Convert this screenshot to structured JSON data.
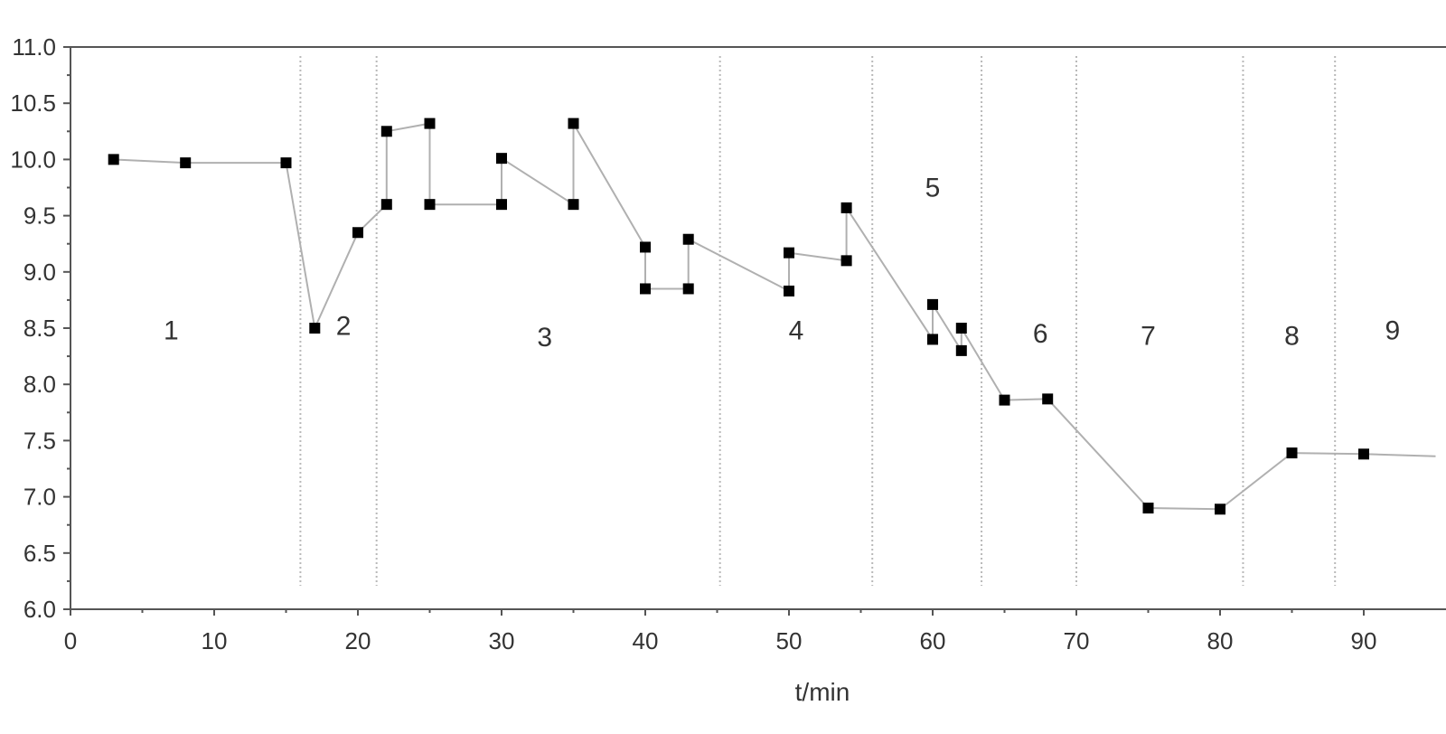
{
  "chart_data": {
    "type": "line",
    "title": "",
    "xlabel": "t/min",
    "ylabel": "",
    "xlim": [
      0,
      95
    ],
    "ylim": [
      6.0,
      11.0
    ],
    "x_ticks": [
      0,
      10,
      20,
      30,
      40,
      50,
      60,
      70,
      80,
      90
    ],
    "x_tick_labels": [
      "0",
      "10",
      "20",
      "30",
      "40",
      "50",
      "60",
      "70",
      "80",
      "90"
    ],
    "y_ticks": [
      6.0,
      6.5,
      7.0,
      7.5,
      8.0,
      8.5,
      9.0,
      9.5,
      10.0,
      10.5,
      11.0
    ],
    "y_tick_labels": [
      "6.0",
      "6.5",
      "7.0",
      "7.5",
      "8.0",
      "8.5",
      "9.0",
      "9.5",
      "10.0",
      "10.5",
      "11.0"
    ],
    "grid": false,
    "marker": "square",
    "colors": {
      "line": "#b0b0b0",
      "marker": "#000000",
      "divider": "#b9b9b9"
    },
    "x": [
      3,
      8,
      15,
      17,
      20,
      22,
      22,
      25,
      25,
      30,
      30,
      35,
      35,
      40,
      40,
      43,
      43,
      50,
      50,
      54,
      54,
      60,
      60,
      62,
      62,
      65,
      68,
      75,
      80,
      85,
      90,
      95
    ],
    "y": [
      10.0,
      9.97,
      9.97,
      8.5,
      9.35,
      9.6,
      10.25,
      10.32,
      9.6,
      9.6,
      10.01,
      9.6,
      10.32,
      9.22,
      8.85,
      8.85,
      9.29,
      8.83,
      9.17,
      9.1,
      9.57,
      8.4,
      8.71,
      8.3,
      8.5,
      7.86,
      7.87,
      6.9,
      6.89,
      7.39,
      7.38,
      7.36
    ],
    "dividers": [
      16,
      21.3,
      45.2,
      55.8,
      63.4,
      70,
      81.6,
      88
    ],
    "regions": [
      {
        "label": "1",
        "x": 7,
        "y": 8.48
      },
      {
        "label": "2",
        "x": 19,
        "y": 8.52
      },
      {
        "label": "3",
        "x": 33,
        "y": 8.42
      },
      {
        "label": "4",
        "x": 50.5,
        "y": 8.48
      },
      {
        "label": "5",
        "x": 60,
        "y": 9.75
      },
      {
        "label": "6",
        "x": 67.5,
        "y": 8.45
      },
      {
        "label": "7",
        "x": 75,
        "y": 8.43
      },
      {
        "label": "8",
        "x": 85,
        "y": 8.43
      },
      {
        "label": "9",
        "x": 92,
        "y": 8.48
      }
    ]
  }
}
